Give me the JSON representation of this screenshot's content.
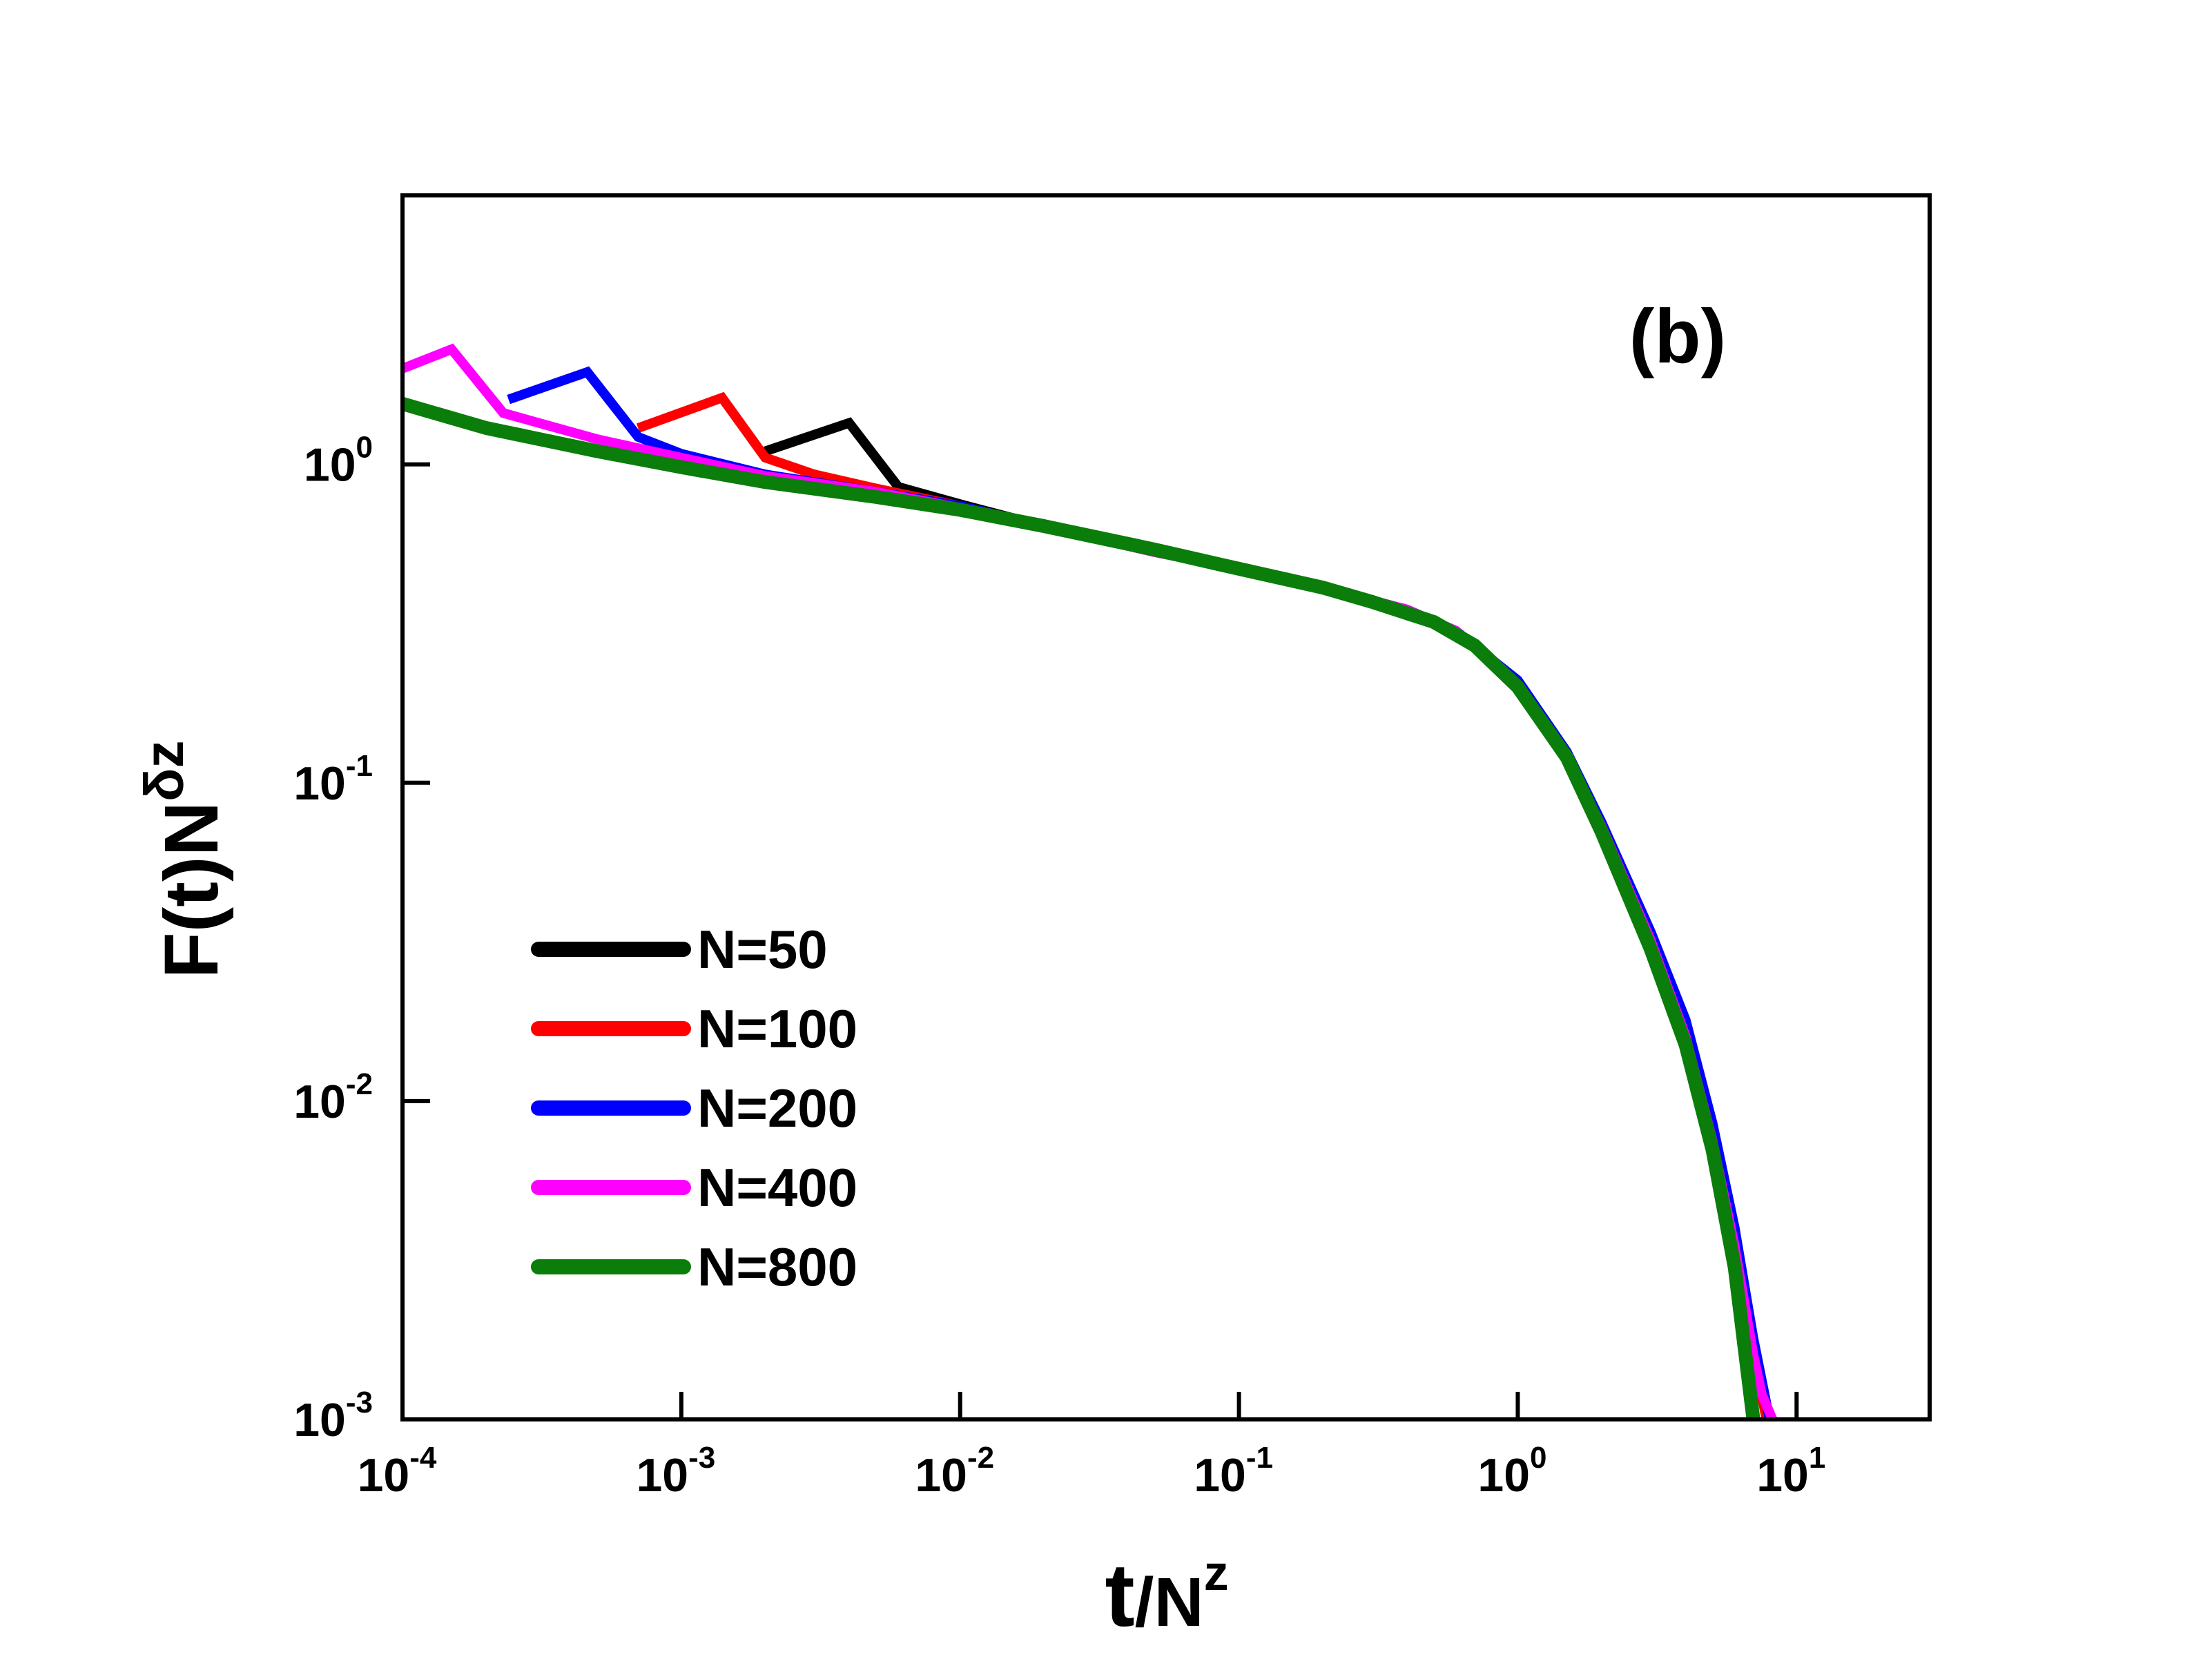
{
  "chart_data": {
    "type": "line",
    "title": "",
    "panel_label": "(b)",
    "xlabel": {
      "base": "t",
      "slash": "/",
      "n": "N",
      "sup": "z"
    },
    "ylabel": {
      "prefix": "F(t)N",
      "sup": "δz"
    },
    "xscale": "log",
    "yscale": "log",
    "xlim": [
      0.0001,
      30
    ],
    "ylim": [
      0.001,
      7
    ],
    "legend_position": "lower-left",
    "x_ticks": [
      {
        "value": 0.0001,
        "base": "10",
        "exp": "-4"
      },
      {
        "value": 0.001,
        "base": "10",
        "exp": "-3"
      },
      {
        "value": 0.01,
        "base": "10",
        "exp": "-2"
      },
      {
        "value": 0.1,
        "base": "10",
        "exp": "-1"
      },
      {
        "value": 1,
        "base": "10",
        "exp": "0"
      },
      {
        "value": 10,
        "base": "10",
        "exp": "1"
      }
    ],
    "y_ticks": [
      {
        "value": 0.001,
        "base": "10",
        "exp": "-3"
      },
      {
        "value": 0.01,
        "base": "10",
        "exp": "-2"
      },
      {
        "value": 0.1,
        "base": "10",
        "exp": "-1"
      },
      {
        "value": 1,
        "base": "10",
        "exp": "0"
      }
    ],
    "series": [
      {
        "name": "N=50",
        "color": "#000000",
        "x": [
          0.002,
          0.004,
          0.006,
          0.01,
          0.02,
          0.05,
          0.1,
          0.2,
          0.4,
          0.6,
          1.0,
          1.5,
          2.0,
          3.0,
          4.0,
          5.0,
          6.0,
          7.0
        ],
        "y": [
          1.1,
          1.35,
          0.85,
          0.75,
          0.64,
          0.53,
          0.47,
          0.41,
          0.35,
          0.3,
          0.2,
          0.12,
          0.07,
          0.03,
          0.015,
          0.007,
          0.0032,
          0.0011
        ]
      },
      {
        "name": "N=100",
        "color": "#ff0000",
        "x": [
          0.0007,
          0.0014,
          0.002,
          0.003,
          0.005,
          0.01,
          0.02,
          0.05,
          0.1,
          0.2,
          0.4,
          0.6,
          1.0,
          1.5,
          2.0,
          3.0,
          4.0,
          5.0,
          6.0,
          7.0,
          7.8
        ],
        "y": [
          1.3,
          1.62,
          1.05,
          0.93,
          0.84,
          0.74,
          0.64,
          0.53,
          0.47,
          0.41,
          0.35,
          0.3,
          0.2,
          0.12,
          0.072,
          0.031,
          0.016,
          0.0075,
          0.0035,
          0.0016,
          0.001
        ]
      },
      {
        "name": "N=200",
        "color": "#0000ff",
        "x": [
          0.00024,
          0.00046,
          0.0007,
          0.001,
          0.002,
          0.005,
          0.01,
          0.02,
          0.05,
          0.1,
          0.2,
          0.4,
          0.6,
          1.0,
          1.5,
          2.0,
          3.0,
          4.0,
          5.0,
          6.0,
          7.0,
          8.0
        ],
        "y": [
          1.6,
          1.95,
          1.22,
          1.08,
          0.93,
          0.82,
          0.74,
          0.64,
          0.53,
          0.47,
          0.41,
          0.35,
          0.3,
          0.21,
          0.125,
          0.075,
          0.034,
          0.018,
          0.0085,
          0.004,
          0.0018,
          0.001
        ]
      },
      {
        "name": "N=400",
        "color": "#ff00ff",
        "x": [
          0.0001,
          0.00015,
          0.00023,
          0.0005,
          0.001,
          0.002,
          0.005,
          0.01,
          0.02,
          0.05,
          0.1,
          0.2,
          0.4,
          0.6,
          1.0,
          1.5,
          2.0,
          3.0,
          4.0,
          5.0,
          6.0,
          7.0,
          7.5,
          8.2
        ],
        "y": [
          2.0,
          2.3,
          1.45,
          1.2,
          1.05,
          0.92,
          0.82,
          0.73,
          0.64,
          0.53,
          0.47,
          0.41,
          0.35,
          0.3,
          0.2,
          0.12,
          0.073,
          0.032,
          0.016,
          0.0075,
          0.0035,
          0.0016,
          0.0012,
          0.001
        ]
      },
      {
        "name": "N=800",
        "color": "#0a7d0a",
        "x": [
          0.0001,
          0.0002,
          0.0005,
          0.001,
          0.002,
          0.005,
          0.01,
          0.02,
          0.05,
          0.1,
          0.2,
          0.3,
          0.5,
          0.7,
          1.0,
          1.5,
          2.0,
          3.0,
          4.0,
          5.0,
          6.0,
          7.0
        ],
        "y": [
          1.55,
          1.3,
          1.1,
          0.98,
          0.88,
          0.79,
          0.72,
          0.64,
          0.54,
          0.47,
          0.41,
          0.37,
          0.32,
          0.27,
          0.2,
          0.12,
          0.07,
          0.03,
          0.015,
          0.007,
          0.003,
          0.001
        ]
      }
    ]
  }
}
